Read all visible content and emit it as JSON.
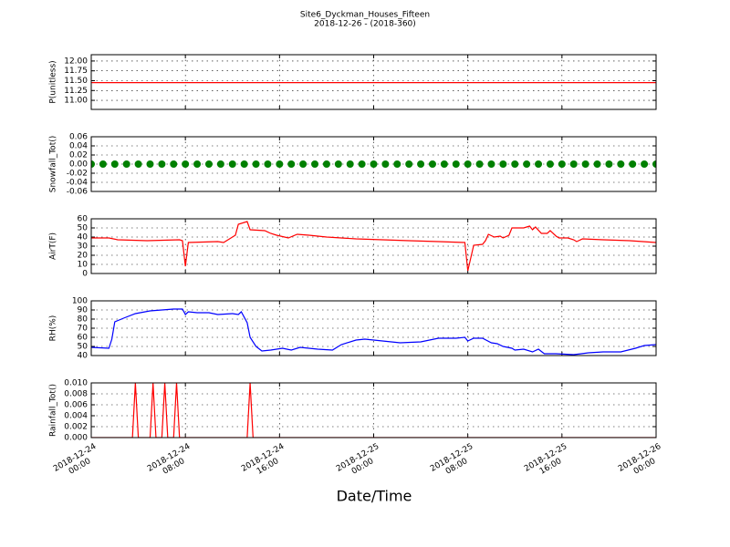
{
  "title": "Site6_Dyckman_Houses_Fifteen",
  "subtitle": "2018-12-26 - (2018-360)",
  "xlabel": "Date/Time",
  "chart_data": [
    {
      "type": "line",
      "ylabel": "P(unitless)",
      "color": "#ff0000",
      "grid": true,
      "x": [
        "2018-12-24 00:00",
        "2018-12-26 00:00"
      ],
      "values": [
        11.45,
        11.45
      ],
      "xlim": [
        "2018-12-24 00:00",
        "2018-12-26 00:00"
      ],
      "xticks": [
        "2018-12-24 00:00",
        "2018-12-24 08:00",
        "2018-12-24 16:00",
        "2018-12-25 00:00",
        "2018-12-25 08:00",
        "2018-12-25 16:00",
        "2018-12-26 00:00"
      ],
      "ylim": [
        10.77,
        12.16
      ],
      "yticks": [
        {
          "value": 11,
          "label": "11.00"
        },
        11.25,
        {
          "value": 11.5,
          "label": "11.50"
        },
        11.75,
        {
          "value": 12,
          "label": "12.00"
        }
      ]
    },
    {
      "type": "scatter",
      "ylabel": "Snowfall_Tot()",
      "color": "#008000",
      "grid": true,
      "x": [
        "2018-12-24 00:00",
        "2018-12-24 01:00",
        "2018-12-24 02:00",
        "2018-12-24 03:00",
        "2018-12-24 04:00",
        "2018-12-24 05:00",
        "2018-12-24 06:00",
        "2018-12-24 07:00",
        "2018-12-24 08:00",
        "2018-12-24 09:00",
        "2018-12-24 10:00",
        "2018-12-24 11:00",
        "2018-12-24 12:00",
        "2018-12-24 13:00",
        "2018-12-24 14:00",
        "2018-12-24 15:00",
        "2018-12-24 16:00",
        "2018-12-24 17:00",
        "2018-12-24 18:00",
        "2018-12-24 19:00",
        "2018-12-24 20:00",
        "2018-12-24 21:00",
        "2018-12-24 22:00",
        "2018-12-24 23:00",
        "2018-12-25 00:00",
        "2018-12-25 01:00",
        "2018-12-25 02:00",
        "2018-12-25 03:00",
        "2018-12-25 04:00",
        "2018-12-25 05:00",
        "2018-12-25 06:00",
        "2018-12-25 07:00",
        "2018-12-25 08:00",
        "2018-12-25 09:00",
        "2018-12-25 10:00",
        "2018-12-25 11:00",
        "2018-12-25 12:00",
        "2018-12-25 13:00",
        "2018-12-25 14:00",
        "2018-12-25 15:00",
        "2018-12-25 16:00",
        "2018-12-25 17:00",
        "2018-12-25 18:00",
        "2018-12-25 19:00",
        "2018-12-25 20:00",
        "2018-12-25 21:00",
        "2018-12-25 22:00",
        "2018-12-25 23:00",
        "2018-12-26 00:00"
      ],
      "values": [
        0,
        0,
        0,
        0,
        0,
        0,
        0,
        0,
        0,
        0,
        0,
        0,
        0,
        0,
        0,
        0,
        0,
        0,
        0,
        0,
        0,
        0,
        0,
        0,
        0,
        0,
        0,
        0,
        0,
        0,
        0,
        0,
        0,
        0,
        0,
        0,
        0,
        0,
        0,
        0,
        0,
        0,
        0,
        0,
        0,
        0,
        0,
        0,
        0
      ],
      "xlim": [
        "2018-12-24 00:00",
        "2018-12-26 00:00"
      ],
      "xticks": [
        "2018-12-24 00:00",
        "2018-12-24 08:00",
        "2018-12-24 16:00",
        "2018-12-25 00:00",
        "2018-12-25 08:00",
        "2018-12-25 16:00",
        "2018-12-26 00:00"
      ],
      "ylim": [
        -0.06,
        0.06
      ],
      "yticks": [
        -0.06,
        -0.04,
        -0.02,
        {
          "value": 0,
          "label": "0.00"
        },
        0.02,
        0.04,
        0.06
      ]
    },
    {
      "type": "line",
      "ylabel": "AirT(F)",
      "color": "#ff0000",
      "grid": true,
      "x": [
        "2018-12-24 00:00",
        "2018-12-24 01:30",
        "2018-12-24 02:15",
        "2018-12-24 04:45",
        "2018-12-24 07:30",
        "2018-12-24 07:45",
        "2018-12-24 08:00",
        "2018-12-24 08:15",
        "2018-12-24 10:45",
        "2018-12-24 11:15",
        "2018-12-24 11:45",
        "2018-12-24 12:15",
        "2018-12-24 12:30",
        "2018-12-24 13:15",
        "2018-12-24 13:30",
        "2018-12-24 14:45",
        "2018-12-24 15:15",
        "2018-12-24 15:45",
        "2018-12-24 16:45",
        "2018-12-24 17:30",
        "2018-12-24 18:30",
        "2018-12-24 20:00",
        "2018-12-24 22:30",
        "2018-12-25 00:45",
        "2018-12-25 03:00",
        "2018-12-25 05:30",
        "2018-12-25 07:45",
        "2018-12-25 08:00",
        "2018-12-25 08:30",
        "2018-12-25 09:15",
        "2018-12-25 09:30",
        "2018-12-25 09:45",
        "2018-12-25 10:15",
        "2018-12-25 10:45",
        "2018-12-25 11:00",
        "2018-12-25 11:30",
        "2018-12-25 11:45",
        "2018-12-25 12:45",
        "2018-12-25 13:15",
        "2018-12-25 13:30",
        "2018-12-25 13:45",
        "2018-12-25 14:15",
        "2018-12-25 14:45",
        "2018-12-25 15:00",
        "2018-12-25 15:30",
        "2018-12-25 15:45",
        "2018-12-25 16:30",
        "2018-12-25 17:00",
        "2018-12-25 17:15",
        "2018-12-25 17:45",
        "2018-12-25 19:30",
        "2018-12-25 21:45",
        "2018-12-26 00:00"
      ],
      "values": [
        39,
        39,
        37,
        36,
        37,
        36,
        8,
        34,
        35,
        34,
        38,
        42,
        54,
        57,
        48,
        47,
        44,
        42,
        39,
        43,
        42,
        40,
        38,
        37,
        36,
        35,
        34,
        3,
        31,
        32,
        36,
        43,
        40,
        41,
        39,
        42,
        50,
        50,
        52,
        48,
        51,
        44,
        44,
        47,
        41,
        39,
        39,
        37,
        35,
        38,
        37,
        36,
        34
      ],
      "xlim": [
        "2018-12-24 00:00",
        "2018-12-26 00:00"
      ],
      "xticks": [
        "2018-12-24 00:00",
        "2018-12-24 08:00",
        "2018-12-24 16:00",
        "2018-12-25 00:00",
        "2018-12-25 08:00",
        "2018-12-25 16:00",
        "2018-12-26 00:00"
      ],
      "ylim": [
        0,
        60
      ],
      "yticks": [
        0,
        10,
        20,
        30,
        40,
        50,
        60
      ]
    },
    {
      "type": "line",
      "ylabel": "RH(%)",
      "color": "#0000ff",
      "grid": true,
      "x": [
        "2018-12-24 00:00",
        "2018-12-24 01:30",
        "2018-12-24 01:45",
        "2018-12-24 02:00",
        "2018-12-24 02:45",
        "2018-12-24 03:45",
        "2018-12-24 05:00",
        "2018-12-24 07:00",
        "2018-12-24 07:45",
        "2018-12-24 08:00",
        "2018-12-24 08:15",
        "2018-12-24 09:00",
        "2018-12-24 10:00",
        "2018-12-24 10:45",
        "2018-12-24 12:00",
        "2018-12-24 12:30",
        "2018-12-24 12:45",
        "2018-12-24 13:15",
        "2018-12-24 13:30",
        "2018-12-24 14:00",
        "2018-12-24 14:30",
        "2018-12-24 15:15",
        "2018-12-24 16:15",
        "2018-12-24 17:00",
        "2018-12-24 17:45",
        "2018-12-24 19:15",
        "2018-12-24 20:30",
        "2018-12-24 21:15",
        "2018-12-24 22:30",
        "2018-12-24 23:15",
        "2018-12-25 00:45",
        "2018-12-25 02:15",
        "2018-12-25 04:00",
        "2018-12-25 05:30",
        "2018-12-25 07:00",
        "2018-12-25 07:45",
        "2018-12-25 08:00",
        "2018-12-25 08:30",
        "2018-12-25 09:15",
        "2018-12-25 10:00",
        "2018-12-25 10:30",
        "2018-12-25 11:00",
        "2018-12-25 11:45",
        "2018-12-25 12:00",
        "2018-12-25 12:45",
        "2018-12-25 13:30",
        "2018-12-25 14:00",
        "2018-12-25 14:30",
        "2018-12-25 15:30",
        "2018-12-25 17:00",
        "2018-12-25 18:15",
        "2018-12-25 19:30",
        "2018-12-25 21:00",
        "2018-12-25 22:15",
        "2018-12-25 23:00",
        "2018-12-26 00:00"
      ],
      "values": [
        49,
        48,
        58,
        77,
        81,
        86,
        89,
        91,
        91,
        85,
        88,
        87,
        87,
        85,
        86,
        85,
        88,
        76,
        60,
        50,
        45,
        46,
        48,
        46,
        49,
        47,
        46,
        52,
        57,
        58,
        56,
        54,
        55,
        59,
        59,
        60,
        56,
        59,
        59,
        54,
        53,
        50,
        48,
        46,
        47,
        44,
        47,
        42,
        42,
        41,
        43,
        44,
        44,
        48,
        51,
        52
      ],
      "xlim": [
        "2018-12-24 00:00",
        "2018-12-26 00:00"
      ],
      "xticks": [
        "2018-12-24 00:00",
        "2018-12-24 08:00",
        "2018-12-24 16:00",
        "2018-12-25 00:00",
        "2018-12-25 08:00",
        "2018-12-25 16:00",
        "2018-12-26 00:00"
      ],
      "ylim": [
        40,
        100
      ],
      "yticks": [
        40,
        50,
        60,
        70,
        80,
        90,
        100
      ]
    },
    {
      "type": "line",
      "ylabel": "Rainfall_Tot()",
      "color": "#ff0000",
      "grid": true,
      "x": [
        "2018-12-24 00:00",
        "2018-12-24 03:30",
        "2018-12-24 03:45",
        "2018-12-24 04:00",
        "2018-12-24 05:00",
        "2018-12-24 05:15",
        "2018-12-24 05:30",
        "2018-12-24 06:00",
        "2018-12-24 06:15",
        "2018-12-24 06:30",
        "2018-12-24 07:00",
        "2018-12-24 07:15",
        "2018-12-24 07:30",
        "2018-12-24 13:15",
        "2018-12-24 13:30",
        "2018-12-24 13:45",
        "2018-12-26 00:00"
      ],
      "values": [
        0,
        0,
        0.01,
        0,
        0,
        0.01,
        0,
        0,
        0.01,
        0,
        0,
        0.01,
        0,
        0,
        0.01,
        0,
        0
      ],
      "xlim": [
        "2018-12-24 00:00",
        "2018-12-26 00:00"
      ],
      "xticks": [
        {
          "value": "2018-12-24 00:00",
          "label": "2018-12-24\n00:00"
        },
        {
          "value": "2018-12-24 08:00",
          "label": "2018-12-24\n08:00"
        },
        {
          "value": "2018-12-24 16:00",
          "label": "2018-12-24\n16:00"
        },
        {
          "value": "2018-12-25 00:00",
          "label": "2018-12-25\n00:00"
        },
        {
          "value": "2018-12-25 08:00",
          "label": "2018-12-25\n08:00"
        },
        {
          "value": "2018-12-25 16:00",
          "label": "2018-12-25\n16:00"
        },
        {
          "value": "2018-12-26 00:00",
          "label": "2018-12-26\n00:00"
        }
      ],
      "ylim": [
        0,
        0.01
      ],
      "yticks": [
        {
          "value": 0,
          "label": "0.000"
        },
        0.002,
        0.004,
        0.006,
        0.008,
        {
          "value": 0.01,
          "label": "0.010"
        }
      ]
    }
  ]
}
